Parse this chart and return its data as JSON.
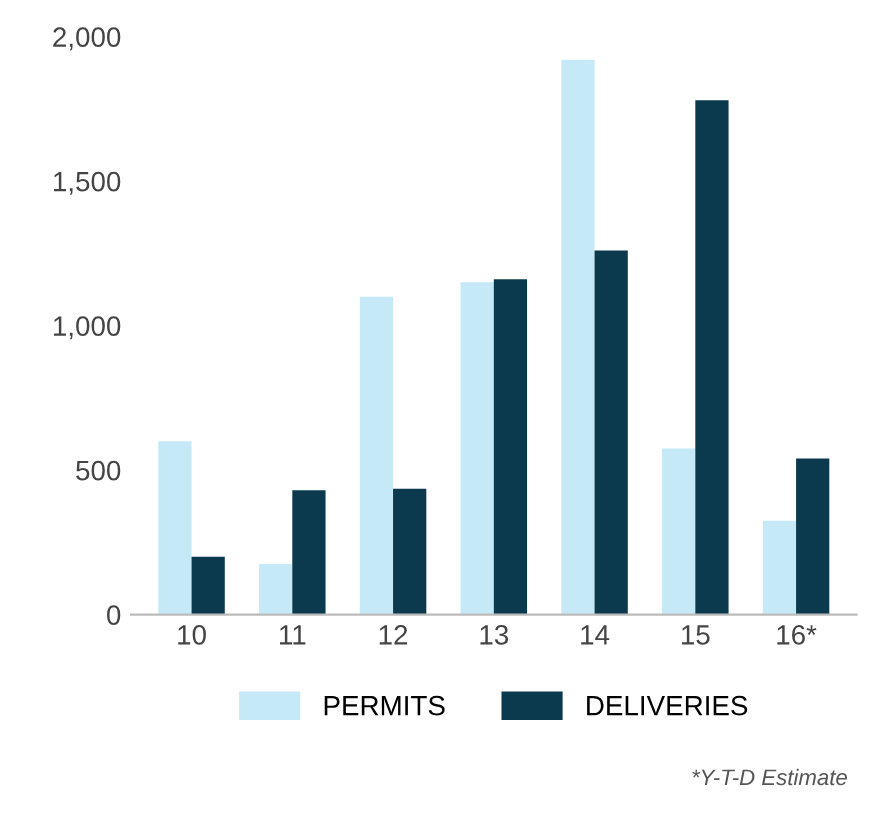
{
  "chart_data": {
    "type": "bar",
    "categories": [
      "10",
      "11",
      "12",
      "13",
      "14",
      "15",
      "16*"
    ],
    "series": [
      {
        "name": "PERMITS",
        "color": "#c6e9f7",
        "values": [
          600,
          175,
          1100,
          1150,
          1920,
          575,
          325
        ]
      },
      {
        "name": "DELIVERIES",
        "color": "#0b3a4e",
        "values": [
          200,
          430,
          435,
          1160,
          1260,
          1780,
          540
        ]
      }
    ],
    "ylim": [
      0,
      2000
    ],
    "yticks": [
      0,
      {
        "value": 500,
        "label": "500"
      },
      {
        "value": 1000,
        "label": "1,000"
      },
      {
        "value": 1500,
        "label": "1,500"
      },
      {
        "value": 2000,
        "label": "2,000"
      }
    ],
    "legend": "bottom",
    "annotations": [
      "*Y-T-D Estimate"
    ]
  }
}
